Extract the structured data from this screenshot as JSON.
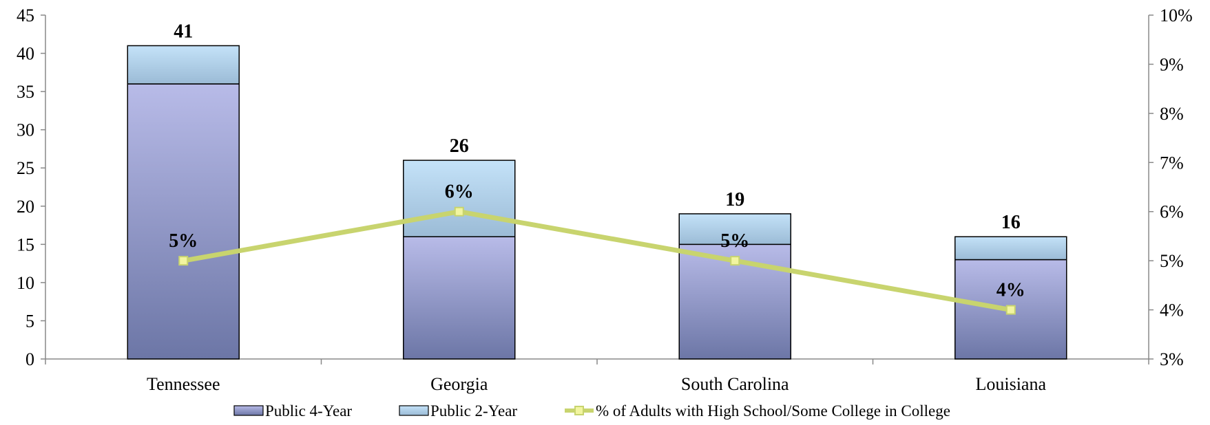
{
  "chart_data": {
    "type": "bar",
    "stacked": true,
    "categories": [
      "Tennessee",
      "Georgia",
      "South Carolina",
      "Louisiana"
    ],
    "series": [
      {
        "name": "Public 4-Year",
        "values": [
          36,
          16,
          15,
          13
        ],
        "axis": "left",
        "color_top": "#b8bbe8",
        "color_bottom": "#6c76a6"
      },
      {
        "name": "Public 2-Year",
        "values": [
          5,
          10,
          4,
          3
        ],
        "axis": "left",
        "color_top": "#c4e2f8",
        "color_bottom": "#9bbbd6"
      },
      {
        "name": "% of Adults with High School/Some College in College",
        "type": "line",
        "axis": "right",
        "values": [
          5,
          6,
          5,
          4
        ],
        "labels": [
          "5%",
          "6%",
          "5%",
          "4%"
        ],
        "color": "#c8d46e",
        "marker_color": "#f2f5a0"
      }
    ],
    "totals": [
      41,
      26,
      19,
      16
    ],
    "total_labels": [
      "41",
      "26",
      "19",
      "16"
    ],
    "y_left": {
      "min": 0,
      "max": 45,
      "step": 5,
      "ticks": [
        "0",
        "5",
        "10",
        "15",
        "20",
        "25",
        "30",
        "35",
        "40",
        "45"
      ]
    },
    "y_right": {
      "min": 3,
      "max": 10,
      "step": 1,
      "ticks": [
        "3%",
        "4%",
        "5%",
        "6%",
        "7%",
        "8%",
        "9%",
        "10%"
      ]
    },
    "grid": false,
    "legend_position": "bottom",
    "title": "",
    "xlabel": "",
    "ylabel": ""
  }
}
